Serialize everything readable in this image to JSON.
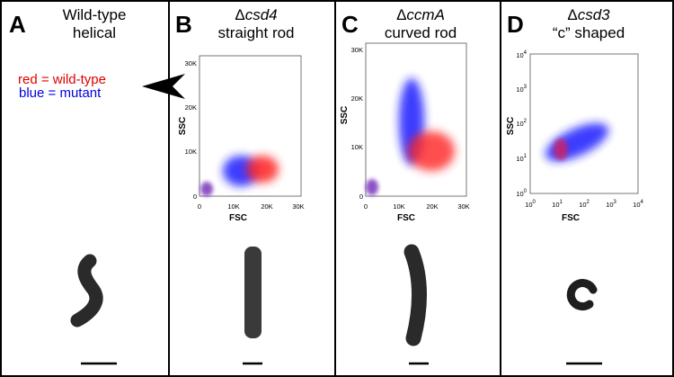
{
  "panels": [
    {
      "letter": "A",
      "title": [
        "Wild-type",
        "helical"
      ],
      "legend": [
        "red = wild-type",
        "blue = mutant"
      ]
    },
    {
      "letter": "B",
      "prefix": "Δ",
      "gene": "csd4",
      "subtitle": "straight rod",
      "plot": {
        "x_label": "FSC",
        "y_label": "SSC",
        "xticks": [
          "0",
          "10K",
          "20K",
          "30K"
        ],
        "yticks": [
          "0",
          "10K",
          "20K",
          "30K"
        ]
      }
    },
    {
      "letter": "C",
      "prefix": "Δ",
      "gene": "ccmA",
      "subtitle": "curved rod",
      "plot": {
        "x_label": "FSC",
        "y_label": "SSC",
        "xticks": [
          "0",
          "10K",
          "20K",
          "30K"
        ],
        "yticks": [
          "0",
          "10K",
          "20K",
          "30K"
        ]
      }
    },
    {
      "letter": "D",
      "prefix": "Δ",
      "gene": "csd3",
      "subtitle": "“c” shaped",
      "plot": {
        "x_label": "FSC",
        "y_label": "SSC",
        "xticks": [
          {
            "base": "10",
            "exponent": "0"
          },
          {
            "base": "10",
            "exponent": "1"
          },
          {
            "base": "10",
            "exponent": "2"
          },
          {
            "base": "10",
            "exponent": "3"
          },
          {
            "base": "10",
            "exponent": "4"
          }
        ],
        "yticks": [
          {
            "base": "10",
            "exponent": "0"
          },
          {
            "base": "10",
            "exponent": "1"
          },
          {
            "base": "10",
            "exponent": "2"
          },
          {
            "base": "10",
            "exponent": "3"
          },
          {
            "base": "10",
            "exponent": "4"
          }
        ]
      }
    }
  ]
}
